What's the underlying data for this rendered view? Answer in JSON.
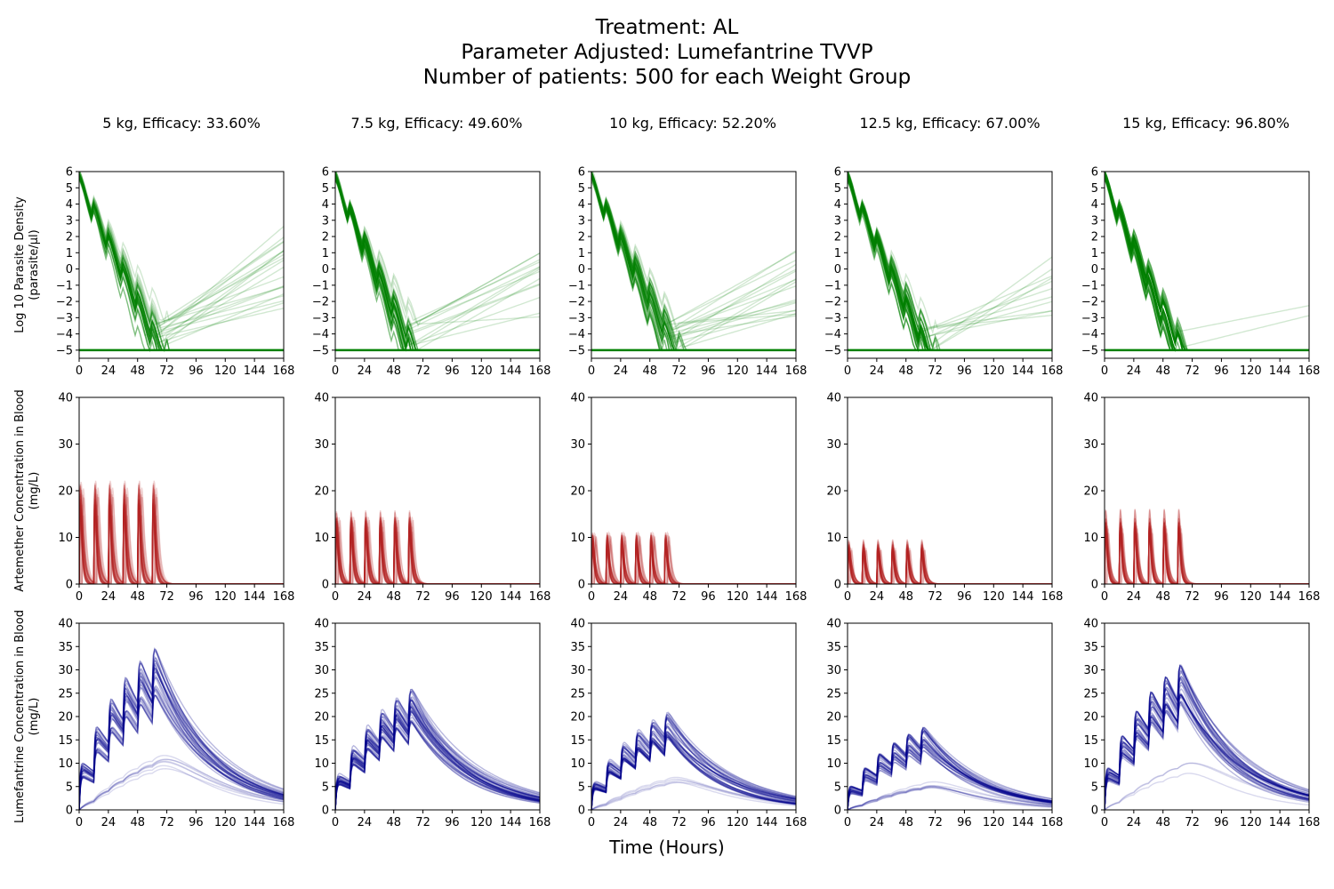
{
  "title_lines": [
    "Treatment: AL",
    "Parameter Adjusted: Lumefantrine TVVP",
    "Number of patients: 500 for each Weight Group"
  ],
  "xlabel": "Time (Hours)",
  "chart_data": {
    "type": "line",
    "layout": "3x5 small multiples, shared x axis per column",
    "n_patients_per_group": 500,
    "x_ticks": [
      0,
      24,
      48,
      72,
      96,
      120,
      144,
      168
    ],
    "xlim": [
      0,
      168
    ],
    "dose_times_hours": [
      0,
      12,
      24,
      36,
      48,
      60
    ],
    "columns": [
      {
        "weight_kg": 5,
        "title": "5 kg, Efficacy: 33.60%",
        "efficacy_percent": 33.6
      },
      {
        "weight_kg": 7.5,
        "title": "7.5 kg, Efficacy: 49.60%",
        "efficacy_percent": 49.6
      },
      {
        "weight_kg": 10,
        "title": "10 kg, Efficacy: 52.20%",
        "efficacy_percent": 52.2
      },
      {
        "weight_kg": 12.5,
        "title": "12.5 kg, Efficacy: 67.00%",
        "efficacy_percent": 67.0
      },
      {
        "weight_kg": 15,
        "title": "15 kg, Efficacy: 96.80%",
        "efficacy_percent": 96.8
      }
    ],
    "rows": [
      {
        "key": "parasite",
        "ylabel": [
          "Log 10 Parasite Density",
          "(parasite/µl)"
        ],
        "color": "#008000",
        "ylim": [
          -5.5,
          6
        ],
        "y_ticks": [
          -5,
          -4,
          -3,
          -2,
          -1,
          0,
          1,
          2,
          3,
          4,
          5,
          6
        ],
        "lower_limit": -5,
        "initial_log_density": 5.3,
        "clearance_time_hours_by_column": [
          68,
          64,
          70,
          68,
          66
        ],
        "regrowth_at_168h_range_by_column": [
          [
            -3,
            3
          ],
          [
            -3,
            1.5
          ],
          [
            -3,
            1.4
          ],
          [
            -3,
            0.8
          ],
          [
            -3,
            -1.4
          ]
        ]
      },
      {
        "key": "artemether",
        "ylabel": [
          "Artemether Concentration in Blood",
          "(mg/L)"
        ],
        "color": "#b22222",
        "ylim": [
          0,
          40
        ],
        "y_ticks": [
          0,
          10,
          20,
          30,
          40
        ],
        "peak_mg_per_l_by_column": [
          27,
          19,
          14,
          11.5,
          19.5
        ]
      },
      {
        "key": "lumefantrine",
        "ylabel": [
          "Lumefantrine Concentration in Blood",
          "(mg/L)"
        ],
        "color": "#00008b",
        "ylim": [
          0,
          40
        ],
        "y_ticks": [
          0,
          5,
          10,
          15,
          20,
          25,
          30,
          35,
          40
        ],
        "peak_mg_per_l_by_column": [
          34,
          25.5,
          20.5,
          17.5,
          30.5
        ],
        "value_at_168h_by_column": [
          2,
          1.5,
          1.5,
          1,
          2
        ]
      }
    ]
  }
}
